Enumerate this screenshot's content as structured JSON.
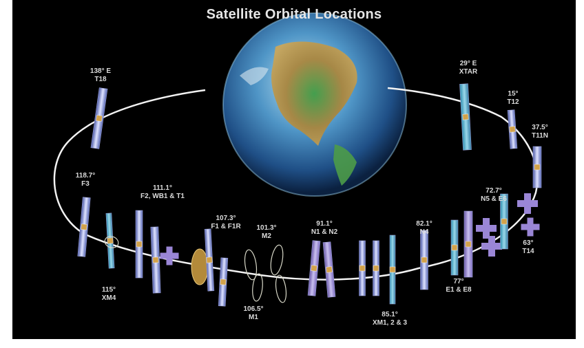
{
  "title": "Satellite Orbital Locations",
  "colors": {
    "background": "#000000",
    "orbit": "#f2f2f2",
    "label": "#dcdcdc",
    "panel_light": "#c7c9ee",
    "panel_blue": "#6f7fc8",
    "panel_purple": "#9a86d6"
  },
  "satellites": [
    {
      "id": "t18",
      "position": "138° E",
      "name": "T18"
    },
    {
      "id": "f3",
      "position": "118.7°",
      "name": "F3"
    },
    {
      "id": "f2",
      "position": "111.1°",
      "name": "F2, WB1 & T1"
    },
    {
      "id": "xm4",
      "position": "115°",
      "name": "XM4"
    },
    {
      "id": "f1",
      "position": "107.3°",
      "name": "F1 & F1R"
    },
    {
      "id": "m2",
      "position": "101.3°",
      "name": "M2"
    },
    {
      "id": "m1",
      "position": "106.5°",
      "name": "M1"
    },
    {
      "id": "n1",
      "position": "91.1°",
      "name": "N1 & N2"
    },
    {
      "id": "n4",
      "position": "82.1°",
      "name": "N4"
    },
    {
      "id": "xm",
      "position": "85.1°",
      "name": "XM1, 2 & 3"
    },
    {
      "id": "e1",
      "position": "77°",
      "name": "E1 & E8"
    },
    {
      "id": "t14",
      "position": "63°",
      "name": "T14"
    },
    {
      "id": "n5",
      "position": "72.7°",
      "name": "N5 & E6"
    },
    {
      "id": "t11n",
      "position": "37.5°",
      "name": "T11N"
    },
    {
      "id": "t12",
      "position": "15°",
      "name": "T12"
    },
    {
      "id": "xtar",
      "position": "29° E",
      "name": "XTAR"
    }
  ]
}
